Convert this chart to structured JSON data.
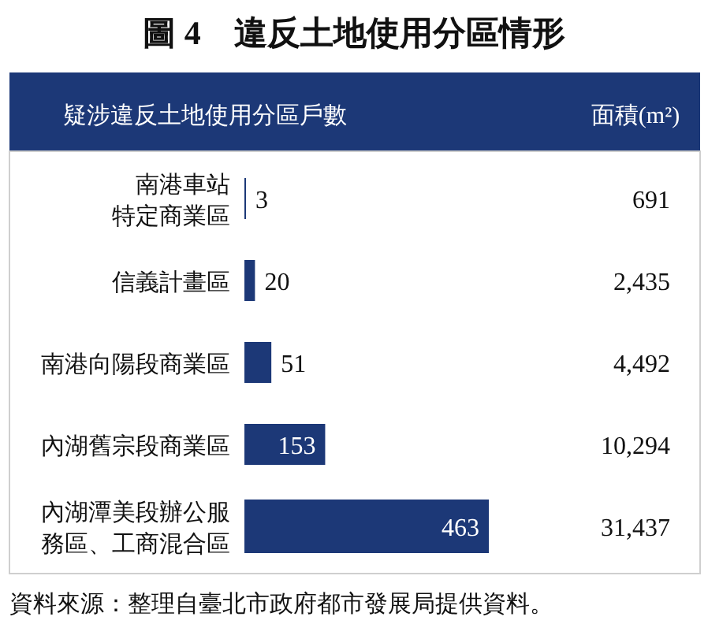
{
  "chart_data": {
    "type": "bar",
    "orientation": "horizontal",
    "title": "圖 4　違反土地使用分區情形",
    "categories": [
      "南港車站特定商業區",
      "信義計畫區",
      "南港向陽段商業區",
      "內湖舊宗段商業區",
      "內湖潭美段辦公服務區、工商混合區"
    ],
    "series": [
      {
        "name": "疑涉違反土地使用分區戶數",
        "color": "#1c3877",
        "values": [
          3,
          20,
          51,
          153,
          463
        ]
      }
    ],
    "data_labels": true,
    "tick_labels": false,
    "legend": false,
    "annotations": [
      "面積(m²)",
      "691",
      "2,435",
      "4,492",
      "10,294",
      "31,437",
      "資料來源：整理自臺北市政府都市發展局提供資料。"
    ]
  }
}
